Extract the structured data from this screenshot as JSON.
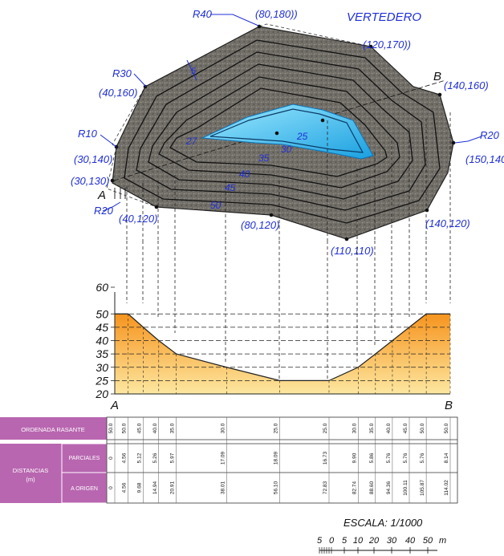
{
  "plan": {
    "title": "VERTEDERO",
    "section_start": "A",
    "section_end": "B",
    "points": [
      "(80,180))",
      "(120,170))",
      "(140,160)",
      "(40,160)",
      "(30,140)",
      "(150,140",
      "(30,130)",
      "(40,120)",
      "(80,120)",
      "(140,120)",
      "(110,110)"
    ],
    "radii": [
      "R40",
      "R30",
      "R10",
      "R20",
      "R20"
    ],
    "bench_width": "5",
    "contour_labels": [
      "25",
      "30",
      "35",
      "40",
      "45",
      "50",
      "27"
    ]
  },
  "profile": {
    "y_ticks": [
      "60",
      "50",
      "45",
      "40",
      "35",
      "30",
      "25",
      "20"
    ],
    "start_label": "A",
    "end_label": "B",
    "colors": {
      "fill_top": "#f6941e",
      "fill_bottom": "#fde7a0",
      "table_label": "#b866b0"
    }
  },
  "chart_data": {
    "type": "area",
    "title": "",
    "xlabel": "",
    "ylabel": "",
    "ylim": [
      20,
      60
    ],
    "grid": true,
    "x": [
      0,
      4.56,
      9.68,
      14.94,
      20.91,
      38.01,
      56.1,
      72.83,
      82.74,
      88.6,
      94.36,
      100.11,
      105.87,
      114.02
    ],
    "y": [
      50,
      50,
      45,
      40,
      35,
      30,
      25,
      25,
      30,
      35,
      40,
      45,
      50,
      50
    ]
  },
  "table": {
    "row_rasante": "ORDENADA RASANTE",
    "group_distancias": "DISTANCIAS",
    "group_unit": "(m)",
    "row_parciales": "PARCIALES",
    "row_origen": "A ORIGEN",
    "rasante_values": [
      "50.0",
      "50.0",
      "45.0",
      "40.0",
      "35.0",
      "30.0",
      "25.0",
      "25.0",
      "30.0",
      "35.0",
      "40.0",
      "45.0",
      "50.0",
      "50.0"
    ],
    "parciales_values": [
      "0",
      "4.56",
      "5.12",
      "5.26",
      "5.97",
      "17.09",
      "18.09",
      "16.73",
      "9.90",
      "5.86",
      "5.76",
      "5.76",
      "5.76",
      "8.14"
    ],
    "origen_values": [
      "0",
      "4.56",
      "9.68",
      "14.94",
      "20.91",
      "38.01",
      "56.10",
      "72.83",
      "82.74",
      "88.60",
      "94.36",
      "100.11",
      "105.87",
      "114.02"
    ]
  },
  "scale": {
    "label": "ESCALA: 1/1000",
    "ticks": [
      "5",
      "0",
      "5",
      "10",
      "20",
      "30",
      "40",
      "50"
    ],
    "unit": "m"
  }
}
